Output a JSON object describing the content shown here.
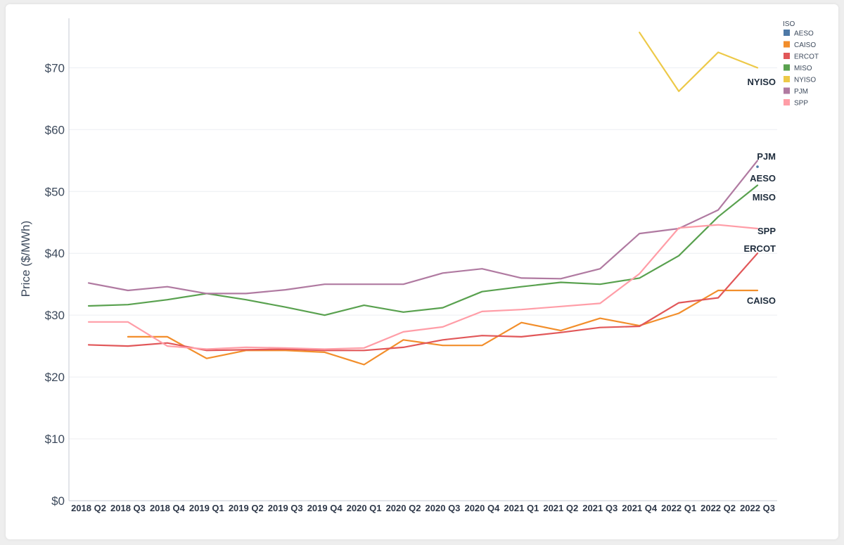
{
  "chart_data": {
    "type": "line",
    "ylabel": "Price ($/MWh)",
    "xlabel": "",
    "ylim": [
      0,
      78
    ],
    "yticks": [
      0,
      10,
      20,
      30,
      40,
      50,
      60,
      70
    ],
    "ytick_labels": [
      "$0",
      "$10",
      "$20",
      "$30",
      "$40",
      "$50",
      "$60",
      "$70"
    ],
    "categories": [
      "2018 Q2",
      "2018 Q3",
      "2018 Q4",
      "2019 Q1",
      "2019 Q2",
      "2019 Q3",
      "2019 Q4",
      "2020 Q1",
      "2020 Q2",
      "2020 Q3",
      "2020 Q4",
      "2021 Q1",
      "2021 Q2",
      "2021 Q3",
      "2021 Q4",
      "2022 Q1",
      "2022 Q2",
      "2022 Q3"
    ],
    "grid": true,
    "legend": {
      "title": "ISO",
      "position": "top-right"
    },
    "series": [
      {
        "name": "AESO",
        "color": "#4e79a7",
        "end_label": "AESO",
        "values": [
          null,
          null,
          null,
          null,
          null,
          null,
          null,
          null,
          null,
          null,
          null,
          null,
          null,
          null,
          null,
          null,
          null,
          54.0
        ]
      },
      {
        "name": "CAISO",
        "color": "#f28e2b",
        "end_label": "CAISO",
        "values": [
          null,
          26.5,
          26.5,
          23.0,
          24.3,
          24.3,
          24.0,
          22.0,
          26.0,
          25.1,
          25.1,
          28.8,
          27.5,
          29.5,
          28.3,
          30.3,
          34.0,
          34.0
        ]
      },
      {
        "name": "ERCOT",
        "color": "#e15759",
        "end_label": "ERCOT",
        "values": [
          25.2,
          25.0,
          25.5,
          24.3,
          24.4,
          24.5,
          24.3,
          24.3,
          24.8,
          26.0,
          26.7,
          26.5,
          27.2,
          28.0,
          28.2,
          32.0,
          32.8,
          40.0
        ]
      },
      {
        "name": "MISO",
        "color": "#59a14f",
        "end_label": "MISO",
        "values": [
          31.5,
          31.7,
          32.5,
          33.5,
          32.5,
          31.3,
          30.0,
          31.6,
          30.5,
          31.2,
          33.8,
          34.6,
          35.3,
          35.0,
          36.0,
          39.6,
          45.9,
          51.0
        ]
      },
      {
        "name": "NYISO",
        "color": "#edc948",
        "end_label": "NYISO",
        "values": [
          null,
          null,
          null,
          null,
          null,
          null,
          null,
          null,
          null,
          null,
          null,
          null,
          null,
          null,
          75.7,
          66.2,
          72.5,
          70.0
        ]
      },
      {
        "name": "PJM",
        "color": "#b07aa1",
        "end_label": "PJM",
        "values": [
          35.2,
          34.0,
          34.6,
          33.5,
          33.5,
          34.1,
          35.0,
          35.0,
          35.0,
          36.8,
          37.5,
          36.0,
          35.9,
          37.5,
          43.2,
          44.0,
          47.0,
          55.0
        ]
      },
      {
        "name": "SPP",
        "color": "#ff9da7",
        "end_label": "SPP",
        "values": [
          28.9,
          28.9,
          25.0,
          24.5,
          24.8,
          24.7,
          24.5,
          24.7,
          27.3,
          28.1,
          30.6,
          30.9,
          31.4,
          31.9,
          36.7,
          44.1,
          44.6,
          44.0
        ]
      }
    ]
  }
}
